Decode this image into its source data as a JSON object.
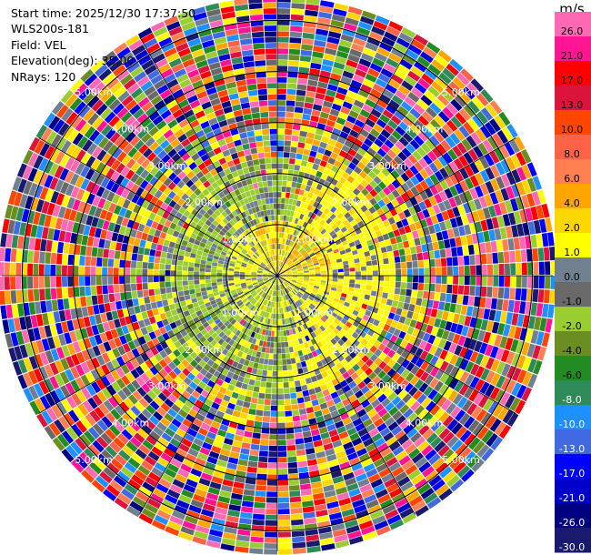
{
  "header": {
    "start_time": "Start time: 2025/12/30 17:37:50",
    "instrument": "WLS200s-181",
    "field": "Field: VEL",
    "elevation": "Elevation(deg): 35.00",
    "nrays": "NRays: 120"
  },
  "chart_data": {
    "type": "heatmap",
    "projection": "polar-ppi",
    "field": "VEL",
    "units": "m/s",
    "elevation_deg": 35.0,
    "n_rays": 120,
    "range_rings_km": [
      1.0,
      2.0,
      3.0,
      4.0,
      5.0
    ],
    "ring_labels": [
      "1.00km",
      "2.00km",
      "3.00km",
      "4.00km",
      "5.00km"
    ],
    "colorbar": {
      "label": "m/s",
      "ticks": [
        "26.0",
        "21.0",
        "17.0",
        "13.0",
        "10.0",
        "8.0",
        "6.0",
        "4.0",
        "2.0",
        "1.0",
        "0.0",
        "-1.0",
        "-2.0",
        "-4.0",
        "-6.0",
        "-8.0",
        "-10.0",
        "-13.0",
        "-17.0",
        "-21.0",
        "-26.0",
        "-30.0"
      ],
      "colors": [
        "#ff69b4",
        "#ff1493",
        "#ff0000",
        "#dc143c",
        "#ff4500",
        "#ff6347",
        "#ff7f50",
        "#ffa500",
        "#ffd700",
        "#ffff00",
        "#708090",
        "#696969",
        "#9acd32",
        "#6b8e23",
        "#228b22",
        "#2e8b57",
        "#1e90ff",
        "#4169e1",
        "#0000ff",
        "#0000cd",
        "#000080",
        "#191970"
      ]
    }
  }
}
